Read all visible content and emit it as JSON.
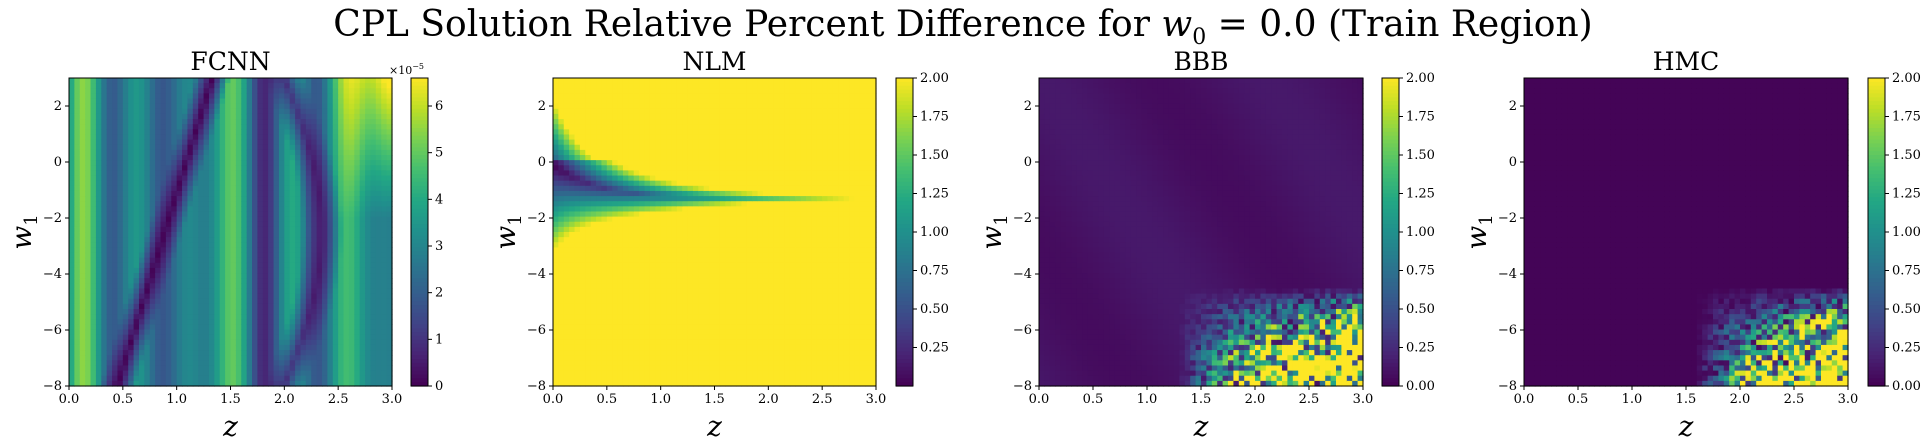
{
  "figure": {
    "title_prefix": "CPL Solution Relative Percent Difference for ",
    "title_var": "w",
    "title_sub": "0",
    "title_suffix": " = 0.0 (Train Region)"
  },
  "chart_data": [
    {
      "type": "heatmap",
      "title": "FCNN",
      "xlabel": "z",
      "ylabel": "w",
      "ylabel_sub": "1",
      "xlim": [
        0.0,
        3.0
      ],
      "ylim": [
        -8,
        3
      ],
      "xticks": [
        "0.0",
        "0.5",
        "1.0",
        "1.5",
        "2.0",
        "2.5",
        "3.0"
      ],
      "yticks": [
        "2",
        "0",
        "−2",
        "−4",
        "−6",
        "−8"
      ],
      "colorbar": {
        "min": 0,
        "max": 6.6,
        "ticks": [
          "0",
          "1",
          "2",
          "3",
          "4",
          "5",
          "6"
        ],
        "offset": "×10",
        "offset_exp": "−5"
      },
      "colormap": "viridis",
      "pattern": "vertical bands varying with z, two dark curved valleys, max ~6.6e-5 near z=3, w1=3"
    },
    {
      "type": "heatmap",
      "title": "NLM",
      "xlabel": "z",
      "ylabel": "w",
      "ylabel_sub": "1",
      "xlim": [
        0.0,
        3.0
      ],
      "ylim": [
        -8,
        3
      ],
      "xticks": [
        "0.0",
        "0.5",
        "1.0",
        "1.5",
        "2.0",
        "2.5",
        "3.0"
      ],
      "yticks": [
        "2",
        "0",
        "−2",
        "−4",
        "−6",
        "−8"
      ],
      "colorbar": {
        "min": 0,
        "max": 2.0,
        "ticks": [
          "0.25",
          "0.50",
          "0.75",
          "1.00",
          "1.25",
          "1.50",
          "1.75",
          "2.00"
        ]
      },
      "colormap": "viridis",
      "pattern": "dark band near w1=-1.3 spreading from z=0, saturates to 2.0 away from it for z>1"
    },
    {
      "type": "heatmap",
      "title": "BBB",
      "xlabel": "z",
      "ylabel": "w",
      "ylabel_sub": "1",
      "xlim": [
        0.0,
        3.0
      ],
      "ylim": [
        -8,
        3
      ],
      "xticks": [
        "0.0",
        "0.5",
        "1.0",
        "1.5",
        "2.0",
        "2.5",
        "3.0"
      ],
      "yticks": [
        "2",
        "0",
        "−2",
        "−4",
        "−6",
        "−8"
      ],
      "colorbar": {
        "min": 0,
        "max": 2.0,
        "ticks": [
          "0.00",
          "0.25",
          "0.50",
          "0.75",
          "1.00",
          "1.25",
          "1.50",
          "1.75",
          "2.00"
        ]
      },
      "colormap": "viridis",
      "pattern": "near zero for most; noisy high values (up to 2.0) in lower-right corner z>1.5, w1<-5"
    },
    {
      "type": "heatmap",
      "title": "HMC",
      "xlabel": "z",
      "ylabel": "w",
      "ylabel_sub": "1",
      "xlim": [
        0.0,
        3.0
      ],
      "ylim": [
        -8,
        3
      ],
      "xticks": [
        "0.0",
        "0.5",
        "1.0",
        "1.5",
        "2.0",
        "2.5",
        "3.0"
      ],
      "yticks": [
        "2",
        "0",
        "−2",
        "−4",
        "−6",
        "−8"
      ],
      "colorbar": {
        "min": 0,
        "max": 2.0,
        "ticks": [
          "0.00",
          "0.25",
          "0.50",
          "0.75",
          "1.00",
          "1.25",
          "1.50",
          "1.75",
          "2.00"
        ]
      },
      "colormap": "viridis",
      "pattern": "near zero for most; noisy high values in lower-right corner z>1.8, w1<-5"
    }
  ]
}
